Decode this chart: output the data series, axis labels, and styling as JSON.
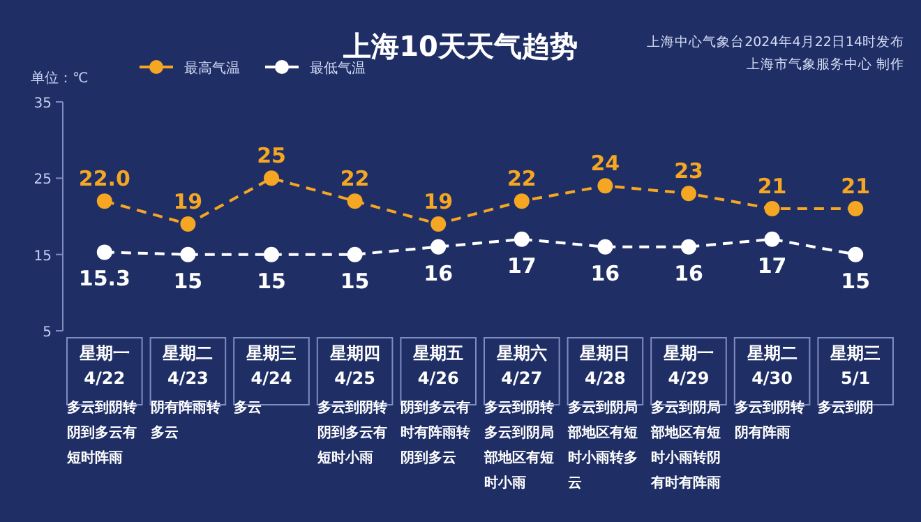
{
  "chart_data": {
    "type": "line",
    "title": "上海10天天气趋势",
    "ylabel": "单位：℃",
    "categories": [
      "星期一\n4/22",
      "星期二\n4/23",
      "星期三\n4/24",
      "星期四\n4/25",
      "星期五\n4/26",
      "星期六\n4/27",
      "星期日\n4/28",
      "星期一\n4/29",
      "星期二\n4/30",
      "星期三\n5/1"
    ],
    "series": [
      {
        "name": "最高气温",
        "color": "#f5a623",
        "values": [
          22,
          19,
          25,
          22,
          19,
          22,
          24,
          23,
          21,
          21
        ],
        "value_labels": [
          "22.0",
          "19",
          "25",
          "22",
          "19",
          "22",
          "24",
          "23",
          "21",
          "21"
        ]
      },
      {
        "name": "最低气温",
        "color": "#ffffff",
        "values": [
          15.3,
          15,
          15,
          15,
          16,
          17,
          16,
          16,
          17,
          15
        ],
        "value_labels": [
          "15.3",
          "15",
          "15",
          "15",
          "16",
          "17",
          "16",
          "16",
          "17",
          "15"
        ]
      }
    ],
    "ylim": [
      5,
      35
    ],
    "yticks": [
      5,
      15,
      25,
      35
    ],
    "legend": "top left",
    "marker": "circle",
    "line_style": "dashed",
    "annotations": [
      "上海中心气象台2024年4月22日14时发布",
      "上海市气象服务中心 制作",
      "多云到阴转阴到多云有短时阵雨",
      "阴有阵雨转多云",
      "多云",
      "多云到阴转阴到多云有短时小雨",
      "阴到多云有时有阵雨转阴到多云",
      "多云到阴转多云到阴局部地区有短时小雨",
      "多云到阴局部地区有短时小雨转多云",
      "多云到阴局部地区有短时小雨转阴有时有阵雨",
      "多云到阴转阴有阵雨",
      "多云到阴"
    ]
  }
}
